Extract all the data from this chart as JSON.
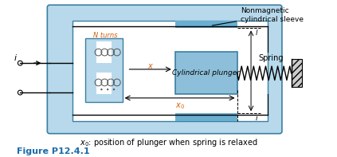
{
  "fig_width": 4.23,
  "fig_height": 1.97,
  "dpi": 100,
  "bg_color": "#ffffff",
  "outer_box_color": "#b8d9ec",
  "plunger_box_color": "#8dbfda",
  "sleeve_color": "#6aaed0",
  "dark_blue": "#1a6aaa",
  "orange_color": "#d4600a",
  "figure_label": "Figure P12.4.1",
  "caption": "$x_0$: position of plunger when spring is relaxed",
  "nonmag_label": "Nonmagnetic\ncylindrical sleeve",
  "spring_label": "Spring",
  "plunger_label": "Cylindrical plunger",
  "n_turns_label": "N turns"
}
